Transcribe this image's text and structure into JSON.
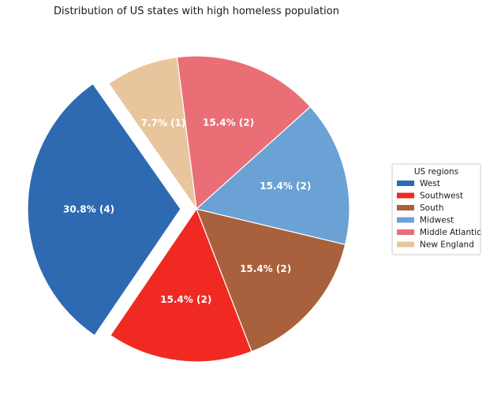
{
  "chart_data": {
    "type": "pie",
    "title": "Distribution of US states with high homeless population",
    "slices": [
      {
        "label": "West",
        "value": 4,
        "percent": 30.8,
        "text": "30.8% (4)",
        "color": "#2e6ab1",
        "exploded": true
      },
      {
        "label": "Southwest",
        "value": 2,
        "percent": 15.4,
        "text": "15.4% (2)",
        "color": "#f02a22",
        "exploded": false
      },
      {
        "label": "South",
        "value": 2,
        "percent": 15.4,
        "text": "15.4% (2)",
        "color": "#a9603c",
        "exploded": false
      },
      {
        "label": "Midwest",
        "value": 2,
        "percent": 15.4,
        "text": "15.4% (2)",
        "color": "#6aa2d6",
        "exploded": false
      },
      {
        "label": "Middle Atlantic",
        "value": 2,
        "percent": 15.4,
        "text": "15.4% (2)",
        "color": "#ea6e76",
        "exploded": false
      },
      {
        "label": "New England",
        "value": 1,
        "percent": 7.7,
        "text": "7.7% (1)",
        "color": "#e9c59d",
        "exploded": false
      }
    ],
    "legend": {
      "title": "US regions",
      "placement": "right"
    }
  }
}
